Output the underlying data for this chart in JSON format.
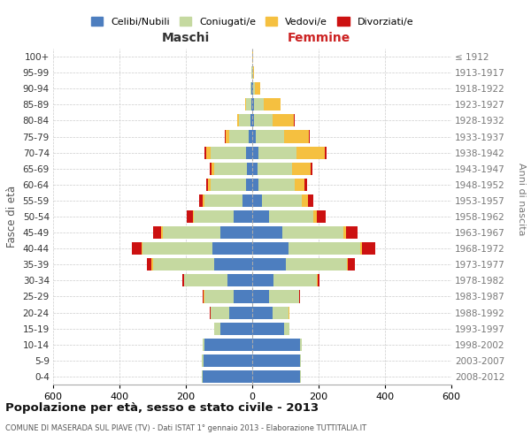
{
  "age_groups": [
    "0-4",
    "5-9",
    "10-14",
    "15-19",
    "20-24",
    "25-29",
    "30-34",
    "35-39",
    "40-44",
    "45-49",
    "50-54",
    "55-59",
    "60-64",
    "65-69",
    "70-74",
    "75-79",
    "80-84",
    "85-89",
    "90-94",
    "95-99",
    "100+"
  ],
  "year_labels": [
    "2008-2012",
    "2003-2007",
    "1998-2002",
    "1993-1997",
    "1988-1992",
    "1983-1987",
    "1978-1982",
    "1973-1977",
    "1968-1972",
    "1963-1967",
    "1958-1962",
    "1953-1957",
    "1948-1952",
    "1943-1947",
    "1938-1942",
    "1933-1937",
    "1928-1932",
    "1923-1927",
    "1918-1922",
    "1913-1917",
    "≤ 1912"
  ],
  "maschi": {
    "celibi": [
      150,
      148,
      145,
      95,
      70,
      55,
      75,
      115,
      120,
      95,
      55,
      30,
      20,
      15,
      20,
      10,
      5,
      3,
      2,
      1,
      1
    ],
    "coniugati": [
      1,
      3,
      5,
      20,
      55,
      90,
      130,
      185,
      210,
      175,
      120,
      115,
      105,
      100,
      105,
      60,
      35,
      15,
      3,
      1,
      0
    ],
    "vedovi": [
      0,
      0,
      0,
      0,
      1,
      1,
      1,
      3,
      3,
      5,
      5,
      5,
      8,
      8,
      15,
      10,
      5,
      3,
      1,
      0,
      0
    ],
    "divorziati": [
      0,
      0,
      0,
      0,
      2,
      3,
      5,
      15,
      30,
      25,
      18,
      10,
      5,
      5,
      3,
      3,
      1,
      0,
      0,
      0,
      0
    ]
  },
  "femmine": {
    "nubili": [
      145,
      145,
      145,
      95,
      60,
      50,
      65,
      100,
      110,
      90,
      50,
      28,
      18,
      15,
      18,
      10,
      5,
      5,
      3,
      1,
      1
    ],
    "coniugate": [
      1,
      2,
      3,
      18,
      50,
      90,
      130,
      185,
      215,
      185,
      135,
      120,
      110,
      105,
      115,
      85,
      55,
      30,
      5,
      2,
      0
    ],
    "vedove": [
      0,
      0,
      0,
      0,
      1,
      1,
      2,
      3,
      5,
      8,
      10,
      20,
      30,
      55,
      85,
      75,
      65,
      50,
      15,
      3,
      1
    ],
    "divorziate": [
      0,
      0,
      0,
      0,
      1,
      3,
      5,
      20,
      40,
      35,
      25,
      15,
      8,
      5,
      5,
      3,
      3,
      1,
      0,
      0,
      0
    ]
  },
  "colors": {
    "celibi": "#4d7ebf",
    "coniugati": "#c5d9a0",
    "vedovi": "#f5c040",
    "divorziati": "#cc1111"
  },
  "legend_labels": [
    "Celibi/Nubili",
    "Coniugati/e",
    "Vedovi/e",
    "Divorziati/e"
  ],
  "title": "Popolazione per età, sesso e stato civile - 2013",
  "subtitle": "COMUNE DI MASERADA SUL PIAVE (TV) - Dati ISTAT 1° gennaio 2013 - Elaborazione TUTTITALIA.IT",
  "xlabel_left": "Maschi",
  "xlabel_right": "Femmine",
  "ylabel_left": "Fasce di età",
  "ylabel_right": "Anni di nascita",
  "xlim": 600,
  "background_color": "#ffffff"
}
